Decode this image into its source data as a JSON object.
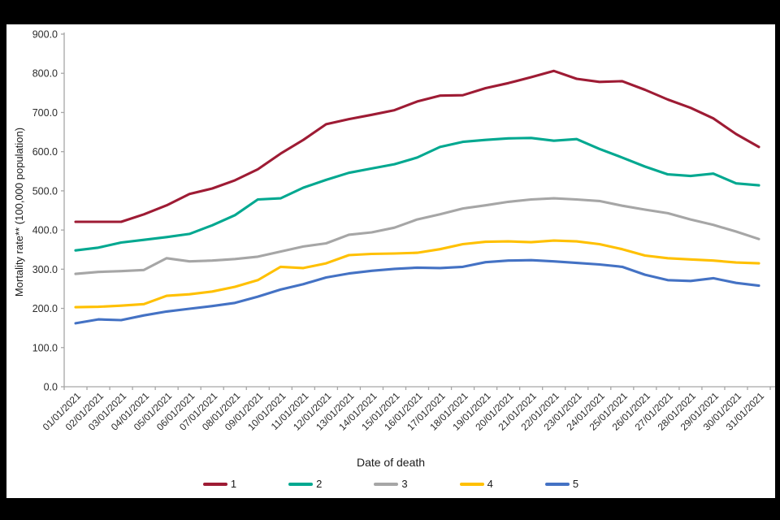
{
  "page": {
    "background": "#000000",
    "panel_background": "#ffffff",
    "axis_line_color": "#a6a6a6",
    "tick_text_color": "#2b2b2b"
  },
  "y_axis": {
    "title": "Mortality rate** (100,000 population)",
    "tick_labels": [
      "0.0",
      "100.0",
      "200.0",
      "300.0",
      "400.0",
      "500.0",
      "600.0",
      "700.0",
      "800.0",
      "900.0"
    ],
    "min": 0,
    "max": 900,
    "step": 100
  },
  "x_axis": {
    "title": "Date of death",
    "labels": [
      "01/01/2021",
      "02/01/2021",
      "03/01/2021",
      "04/01/2021",
      "05/01/2021",
      "06/01/2021",
      "07/01/2021",
      "08/01/2021",
      "09/01/2021",
      "10/01/2021",
      "11/01/2021",
      "12/01/2021",
      "13/01/2021",
      "14/01/2021",
      "15/01/2021",
      "16/01/2021",
      "17/01/2021",
      "18/01/2021",
      "19/01/2021",
      "20/01/2021",
      "21/01/2021",
      "22/01/2021",
      "23/01/2021",
      "24/01/2021",
      "25/01/2021",
      "26/01/2021",
      "27/01/2021",
      "28/01/2021",
      "29/01/2021",
      "30/01/2021",
      "31/01/2021"
    ]
  },
  "chart_data": {
    "type": "line",
    "title": "",
    "xlabel": "Date of death",
    "ylabel": "Mortality rate** (100,000 population)",
    "ylim": [
      0,
      900
    ],
    "grid": false,
    "legend_position": "bottom",
    "x": [
      "01/01/2021",
      "02/01/2021",
      "03/01/2021",
      "04/01/2021",
      "05/01/2021",
      "06/01/2021",
      "07/01/2021",
      "08/01/2021",
      "09/01/2021",
      "10/01/2021",
      "11/01/2021",
      "12/01/2021",
      "13/01/2021",
      "14/01/2021",
      "15/01/2021",
      "16/01/2021",
      "17/01/2021",
      "18/01/2021",
      "19/01/2021",
      "20/01/2021",
      "21/01/2021",
      "22/01/2021",
      "23/01/2021",
      "24/01/2021",
      "25/01/2021",
      "26/01/2021",
      "27/01/2021",
      "28/01/2021",
      "29/01/2021",
      "30/01/2021",
      "31/01/2021"
    ],
    "series": [
      {
        "name": "1",
        "color": "#9e1b34",
        "values": [
          421,
          421,
          421,
          440,
          463,
          492,
          506,
          527,
          555,
          595,
          630,
          670,
          683,
          694,
          706,
          728,
          743,
          744,
          762,
          775,
          790,
          806,
          786,
          778,
          780,
          758,
          733,
          712,
          685,
          645,
          612
        ]
      },
      {
        "name": "2",
        "color": "#00a890",
        "values": [
          348,
          355,
          368,
          375,
          382,
          390,
          412,
          438,
          478,
          481,
          508,
          528,
          546,
          557,
          568,
          585,
          612,
          625,
          630,
          634,
          635,
          628,
          632,
          607,
          585,
          562,
          542,
          538,
          544,
          519,
          514
        ]
      },
      {
        "name": "3",
        "color": "#a6a6a6",
        "values": [
          288,
          293,
          295,
          298,
          328,
          320,
          322,
          326,
          332,
          345,
          358,
          366,
          388,
          394,
          406,
          427,
          440,
          455,
          463,
          472,
          478,
          481,
          478,
          474,
          462,
          452,
          443,
          427,
          413,
          396,
          377
        ]
      },
      {
        "name": "4",
        "color": "#ffc000",
        "values": [
          203,
          204,
          207,
          211,
          232,
          236,
          243,
          255,
          272,
          306,
          303,
          315,
          336,
          339,
          340,
          342,
          351,
          364,
          370,
          371,
          369,
          373,
          371,
          364,
          351,
          335,
          328,
          325,
          322,
          317,
          315
        ]
      },
      {
        "name": "5",
        "color": "#4472c4",
        "values": [
          162,
          172,
          170,
          182,
          192,
          199,
          206,
          214,
          230,
          248,
          262,
          279,
          289,
          296,
          301,
          304,
          303,
          306,
          318,
          322,
          323,
          320,
          316,
          312,
          306,
          286,
          272,
          270,
          277,
          265,
          258
        ]
      }
    ]
  }
}
